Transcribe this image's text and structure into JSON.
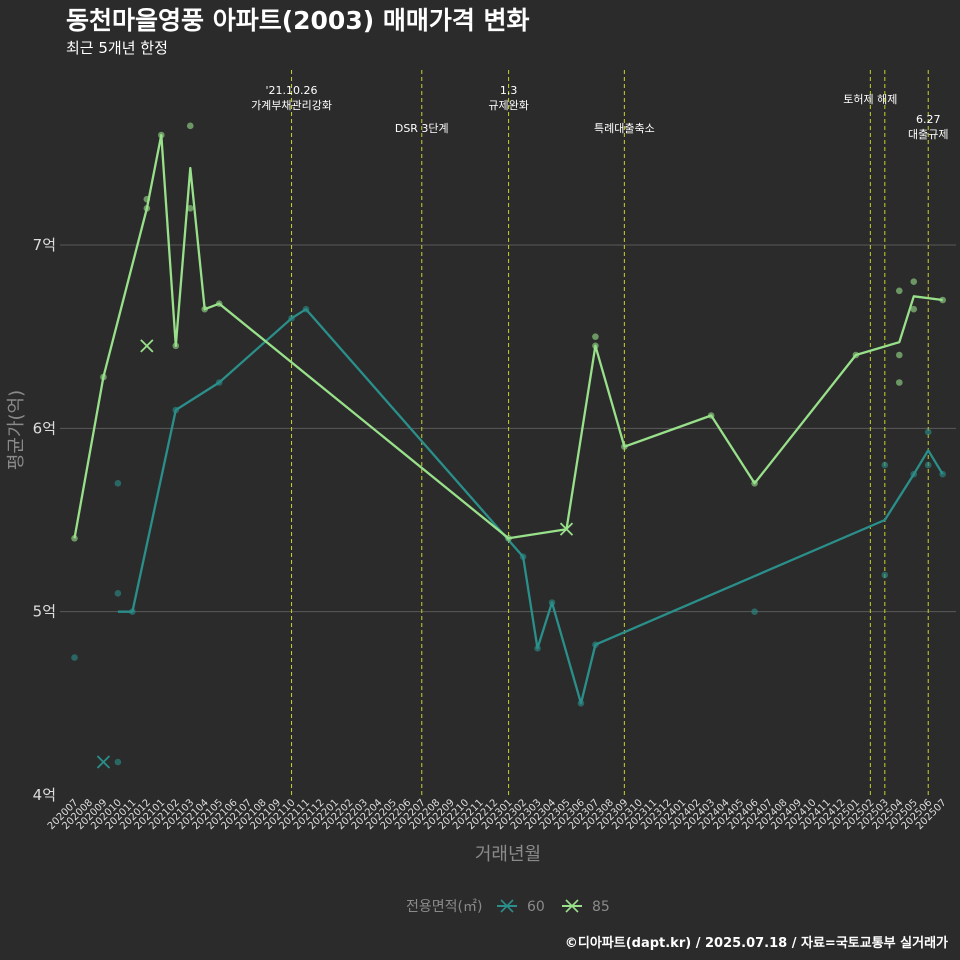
{
  "chart_data": {
    "type": "line",
    "title": "동천마을영풍 아파트(2003) 매매가격 변화",
    "subtitle": "최근 5개년 한정",
    "xlabel": "거래년월",
    "ylabel": "평균가(억)",
    "caption": "©디아파트(dapt.kr) / 2025.07.18 / 자료=국토교통부 실거래가",
    "legend_title": "전용면적(㎡)",
    "x_categories": [
      "202007",
      "202008",
      "202009",
      "202010",
      "202011",
      "202012",
      "202101",
      "202102",
      "202103",
      "202104",
      "202105",
      "202106",
      "202107",
      "202108",
      "202109",
      "202110",
      "202111",
      "202112",
      "202201",
      "202202",
      "202203",
      "202204",
      "202205",
      "202206",
      "202207",
      "202208",
      "202209",
      "202210",
      "202211",
      "202212",
      "202301",
      "202302",
      "202303",
      "202304",
      "202305",
      "202306",
      "202307",
      "202308",
      "202309",
      "202310",
      "202311",
      "202312",
      "202401",
      "202402",
      "202403",
      "202404",
      "202405",
      "202406",
      "202407",
      "202408",
      "202409",
      "202410",
      "202411",
      "202412",
      "202501",
      "202502",
      "202503",
      "202504",
      "202505",
      "202506",
      "202507"
    ],
    "y_ticks": [
      {
        "value": 4,
        "label": "4억"
      },
      {
        "value": 5,
        "label": "5억"
      },
      {
        "value": 6,
        "label": "6억"
      },
      {
        "value": 7,
        "label": "7억"
      }
    ],
    "ylim": [
      4,
      7.6
    ],
    "grid": "horizontal",
    "legend_position": "bottom",
    "series": [
      {
        "name": "60",
        "color": "#2a8f8a",
        "line": [
          [
            "202010",
            5.0
          ],
          [
            "202011",
            5.0
          ],
          [
            "202102",
            6.1
          ],
          [
            "202105",
            6.25
          ],
          [
            "202110",
            6.6
          ],
          [
            "202111",
            6.65
          ],
          [
            "202302",
            5.3
          ],
          [
            "202303",
            4.8
          ],
          [
            "202304",
            5.05
          ],
          [
            "202306",
            4.5
          ],
          [
            "202307",
            4.82
          ],
          [
            "202503",
            5.5
          ],
          [
            "202505",
            5.75
          ],
          [
            "202506",
            5.88
          ],
          [
            "202507",
            5.75
          ]
        ],
        "points": [
          [
            "202007",
            4.75
          ],
          [
            "202010",
            5.1
          ],
          [
            "202010",
            5.7
          ],
          [
            "202010",
            4.18
          ],
          [
            "202011",
            5.0
          ],
          [
            "202102",
            6.1
          ],
          [
            "202105",
            6.25
          ],
          [
            "202110",
            6.6
          ],
          [
            "202111",
            6.65
          ],
          [
            "202302",
            5.3
          ],
          [
            "202303",
            4.8
          ],
          [
            "202304",
            5.05
          ],
          [
            "202306",
            4.5
          ],
          [
            "202307",
            4.82
          ],
          [
            "202406",
            5.0
          ],
          [
            "202503",
            5.8
          ],
          [
            "202503",
            5.2
          ],
          [
            "202505",
            5.75
          ],
          [
            "202506",
            5.98
          ],
          [
            "202506",
            5.8
          ],
          [
            "202507",
            5.75
          ]
        ],
        "x_marks": [
          [
            "202009",
            4.18
          ]
        ]
      },
      {
        "name": "85",
        "color": "#98e08a",
        "line": [
          [
            "202007",
            5.4
          ],
          [
            "202009",
            6.28
          ],
          [
            "202012",
            7.2
          ],
          [
            "202101",
            7.6
          ],
          [
            "202102",
            6.45
          ],
          [
            "202103",
            7.42
          ],
          [
            "202104",
            6.65
          ],
          [
            "202105",
            6.68
          ],
          [
            "202301",
            5.4
          ],
          [
            "202305",
            5.45
          ],
          [
            "202307",
            6.45
          ],
          [
            "202309",
            5.9
          ],
          [
            "202403",
            6.07
          ],
          [
            "202406",
            5.7
          ],
          [
            "202501",
            6.4
          ],
          [
            "202504",
            6.47
          ],
          [
            "202505",
            6.72
          ],
          [
            "202507",
            6.7
          ]
        ],
        "points": [
          [
            "202007",
            5.4
          ],
          [
            "202009",
            6.28
          ],
          [
            "202012",
            7.25
          ],
          [
            "202012",
            7.2
          ],
          [
            "202101",
            7.6
          ],
          [
            "202102",
            6.45
          ],
          [
            "202103",
            7.65
          ],
          [
            "202103",
            7.2
          ],
          [
            "202104",
            6.65
          ],
          [
            "202105",
            6.68
          ],
          [
            "202301",
            5.4
          ],
          [
            "202307",
            6.5
          ],
          [
            "202307",
            6.45
          ],
          [
            "202309",
            5.9
          ],
          [
            "202403",
            6.07
          ],
          [
            "202406",
            5.7
          ],
          [
            "202501",
            6.4
          ],
          [
            "202504",
            6.75
          ],
          [
            "202504",
            6.4
          ],
          [
            "202504",
            6.25
          ],
          [
            "202505",
            6.8
          ],
          [
            "202505",
            6.65
          ],
          [
            "202507",
            6.7
          ]
        ],
        "x_marks": [
          [
            "202012",
            6.45
          ],
          [
            "202305",
            5.45
          ]
        ]
      }
    ],
    "events": [
      {
        "x": "202110",
        "lines": [
          "'21.10.26",
          "가계부채관리강화"
        ],
        "row": 0
      },
      {
        "x": "202207",
        "lines": [
          "DSR 3단계"
        ],
        "row": 2
      },
      {
        "x": "202301",
        "lines": [
          "1.3",
          "규제완화"
        ],
        "row": 0
      },
      {
        "x": "202309",
        "lines": [
          "특례대출축소"
        ],
        "row": 2
      },
      {
        "x": "202502",
        "lines": [
          "토허제 해제"
        ],
        "row": 1
      },
      {
        "x": "202503",
        "lines": [],
        "row": 1
      },
      {
        "x": "202506",
        "lines": [
          "6.27",
          "대출규제"
        ],
        "row": 3
      }
    ]
  }
}
